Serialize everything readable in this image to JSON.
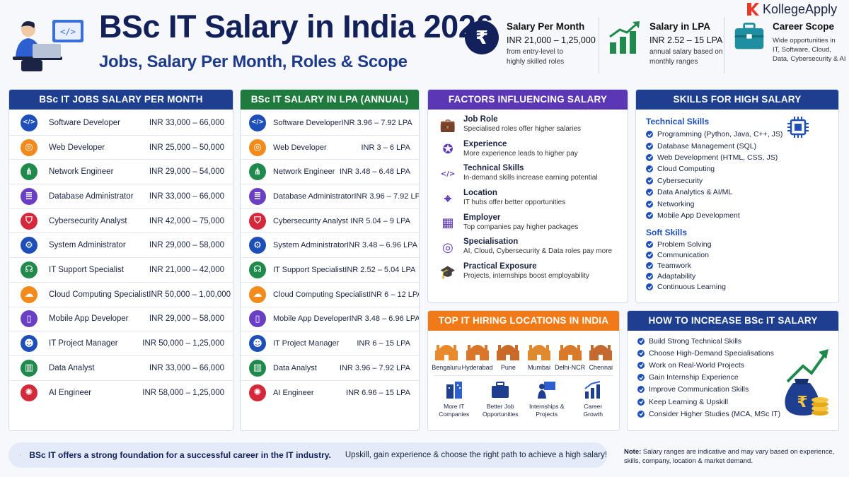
{
  "header": {
    "title": "BSc IT Salary in India 2026",
    "subtitle": "Jobs, Salary Per Month, Roles & Scope",
    "brand": "KollegeApply"
  },
  "stats": [
    {
      "title": "Salary Per Month",
      "value": "INR 21,000 – 1,25,000",
      "desc1": "from entry-level to",
      "desc2": "highly skilled roles"
    },
    {
      "title": "Salary in LPA",
      "value": "INR 2.52 – 15 LPA",
      "desc1": "annual salary based on",
      "desc2": "monthly ranges"
    },
    {
      "title": "Career Scope",
      "desc1": "Wide opportunities in",
      "desc2": "IT, Software, Cloud,",
      "desc3": "Data, Cybersecurity & AI"
    }
  ],
  "monthly": {
    "title": "BSc IT JOBS SALARY PER MONTH",
    "rows": [
      {
        "role": "Software Developer",
        "value": "INR 33,000 – 66,000"
      },
      {
        "role": "Web Developer",
        "value": "INR 25,000 – 50,000"
      },
      {
        "role": "Network Engineer",
        "value": "INR 29,000 – 54,000"
      },
      {
        "role": "Database Administrator",
        "value": "INR 33,000 – 66,000"
      },
      {
        "role": "Cybersecurity Analyst",
        "value": "INR 42,000 – 75,000"
      },
      {
        "role": "System Administrator",
        "value": "INR 29,000 – 58,000"
      },
      {
        "role": "IT Support Specialist",
        "value": "INR 21,000 – 42,000"
      },
      {
        "role": "Cloud Computing Specialist",
        "value": "INR 50,000 – 1,00,000"
      },
      {
        "role": "Mobile App Developer",
        "value": "INR 29,000 – 58,000"
      },
      {
        "role": "IT Project Manager",
        "value": "INR 50,000 – 1,25,000"
      },
      {
        "role": "Data Analyst",
        "value": "INR 33,000 – 66,000"
      },
      {
        "role": "AI Engineer",
        "value": "INR 58,000 – 1,25,000"
      }
    ]
  },
  "annual": {
    "title": "BSc IT SALARY IN LPA (ANNUAL)",
    "rows": [
      {
        "role": "Software Developer",
        "value": "INR 3.96 – 7.92 LPA"
      },
      {
        "role": "Web Developer",
        "value": "INR 3 – 6 LPA"
      },
      {
        "role": "Network Engineer",
        "value": "INR 3.48 – 6.48 LPA"
      },
      {
        "role": "Database Administrator",
        "value": "INR 3.96 – 7.92 LPA"
      },
      {
        "role": "Cybersecurity Analyst",
        "value": "INR 5.04 – 9 LPA"
      },
      {
        "role": "System Administrator",
        "value": "INR 3.48 – 6.96 LPA"
      },
      {
        "role": "IT Support Specialist",
        "value": "INR 2.52 – 5.04 LPA"
      },
      {
        "role": "Cloud Computing Specialist",
        "value": "INR 6 – 12 LPA"
      },
      {
        "role": "Mobile App Developer",
        "value": "INR 3.48 – 6.96 LPA"
      },
      {
        "role": "IT Project Manager",
        "value": "INR 6 – 15 LPA"
      },
      {
        "role": "Data Analyst",
        "value": "INR 3.96 – 7.92 LPA"
      },
      {
        "role": "AI Engineer",
        "value": "INR 6.96 – 15 LPA"
      }
    ]
  },
  "row_icons": [
    {
      "name": "code-icon",
      "color": "#1e4fb8"
    },
    {
      "name": "globe-icon",
      "color": "#f28a1c"
    },
    {
      "name": "network-icon",
      "color": "#1f8a4c"
    },
    {
      "name": "database-icon",
      "color": "#6a3fc4"
    },
    {
      "name": "shield-icon",
      "color": "#d4283b"
    },
    {
      "name": "gear-icon",
      "color": "#1e4fb8"
    },
    {
      "name": "headset-icon",
      "color": "#1f8a4c"
    },
    {
      "name": "cloud-icon",
      "color": "#f28a1c"
    },
    {
      "name": "mobile-icon",
      "color": "#6a3fc4"
    },
    {
      "name": "manager-icon",
      "color": "#1e4fb8"
    },
    {
      "name": "chart-icon",
      "color": "#1f8a4c"
    },
    {
      "name": "ai-brain-icon",
      "color": "#d4283b"
    }
  ],
  "factors": {
    "title": "FACTORS INFLUENCING SALARY",
    "items": [
      {
        "title": "Job Role",
        "desc": "Specialised roles offer higher salaries",
        "icon": "briefcase-icon"
      },
      {
        "title": "Experience",
        "desc": "More experience leads to higher pay",
        "icon": "award-icon"
      },
      {
        "title": "Technical Skills",
        "desc": "In-demand skills increase earning potential",
        "icon": "code-icon"
      },
      {
        "title": "Location",
        "desc": "IT hubs offer better opportunities",
        "icon": "location-pin-icon"
      },
      {
        "title": "Employer",
        "desc": "Top companies pay higher packages",
        "icon": "building-icon"
      },
      {
        "title": "Specialisation",
        "desc": "AI, Cloud, Cybersecurity & Data roles pay more",
        "icon": "target-icon"
      },
      {
        "title": "Practical Exposure",
        "desc": "Projects, internships boost employability",
        "icon": "graduation-cap-icon"
      }
    ]
  },
  "skills": {
    "title": "SKILLS FOR HIGH SALARY",
    "technical_title": "Technical Skills",
    "technical": [
      "Programming (Python, Java, C++, JS)",
      "Database Management (SQL)",
      "Web Development (HTML, CSS, JS)",
      "Cloud Computing",
      "Cybersecurity",
      "Data Analytics & AI/ML",
      "Networking",
      "Mobile App Development"
    ],
    "soft_title": "Soft Skills",
    "soft": [
      "Problem Solving",
      "Communication",
      "Teamwork",
      "Adaptability",
      "Continuous Learning"
    ]
  },
  "locations": {
    "title": "TOP IT HIRING LOCATIONS IN INDIA",
    "cities": [
      "Bengaluru",
      "Hyderabad",
      "Pune",
      "Mumbai",
      "Delhi-NCR",
      "Chennai"
    ],
    "perks": [
      {
        "l1": "More IT",
        "l2": "Companies"
      },
      {
        "l1": "Better Job",
        "l2": "Opportunities"
      },
      {
        "l1": "Internships &",
        "l2": "Projects"
      },
      {
        "l1": "Career",
        "l2": "Growth"
      }
    ]
  },
  "increase": {
    "title": "HOW TO INCREASE BSc IT SALARY",
    "items": [
      "Build Strong Technical Skills",
      "Choose High-Demand Specialisations",
      "Work on Real-World Projects",
      "Gain Internship Experience",
      "Improve Communication Skills",
      "Keep Learning & Upskill",
      "Consider Higher Studies (MCA, MSc IT)"
    ]
  },
  "footer": {
    "bold": "BSc IT offers a strong foundation for a successful career in the IT industry.",
    "rest": "Upskill, gain experience & choose the right path to achieve a high salary!",
    "note_label": "Note:",
    "note": "Salary ranges are indicative and may vary based on experience, skills, company, location & market demand."
  },
  "colors": {
    "navy": "#13215a",
    "blue_header": "#1e3f8f",
    "green_header": "#1f7a3d",
    "purple_header": "#5b37b5",
    "orange_header": "#ef7a17",
    "accent_blue": "#1e4fb8"
  }
}
